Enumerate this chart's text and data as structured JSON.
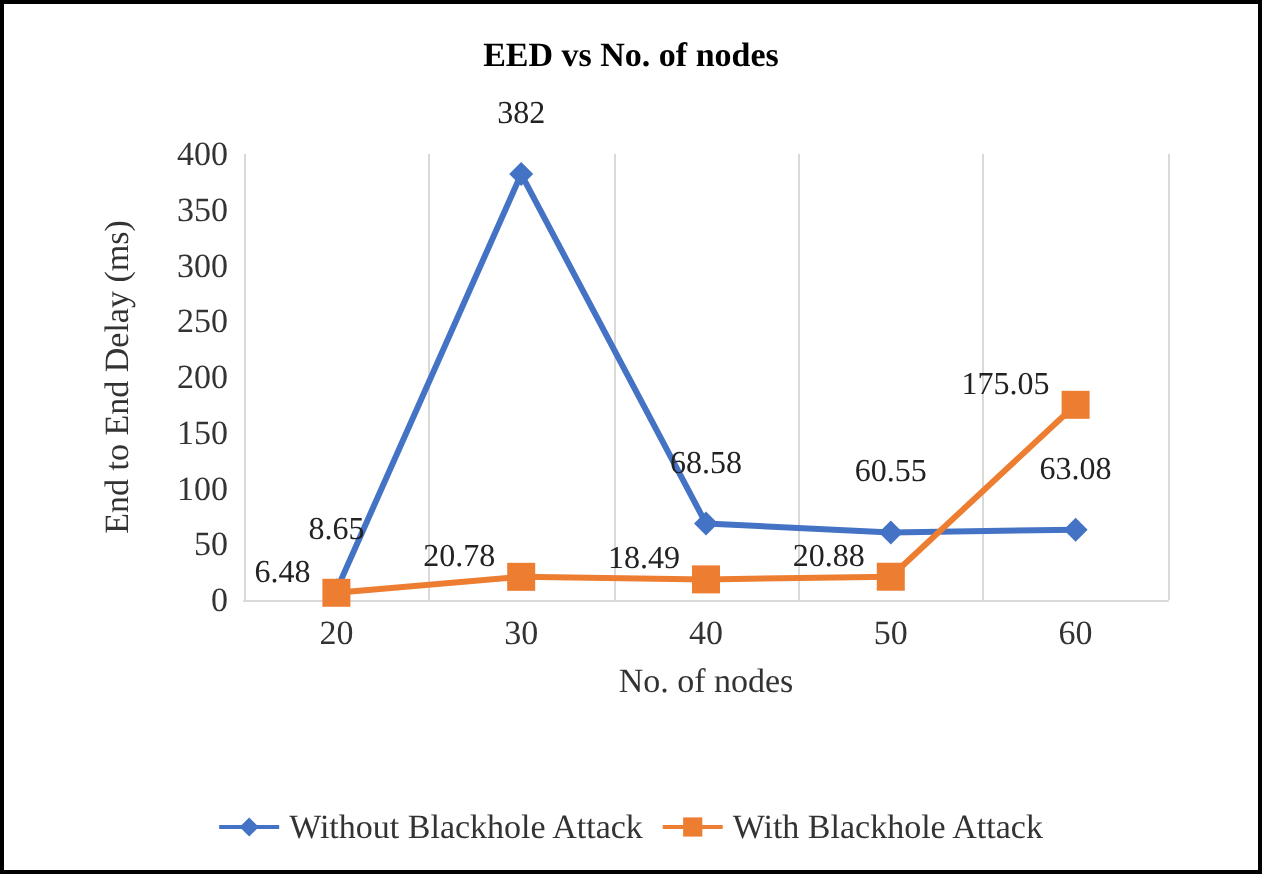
{
  "chart_data": {
    "type": "line",
    "title": "EED vs No. of nodes",
    "xlabel": "No. of nodes",
    "ylabel": "End to End Delay (ms)",
    "categories": [
      "20",
      "30",
      "40",
      "50",
      "60"
    ],
    "series": [
      {
        "name": "Without Blackhole Attack",
        "color": "#4472c4",
        "marker": "diamond",
        "values": [
          8.65,
          382,
          68.58,
          60.55,
          63.08
        ]
      },
      {
        "name": "With Blackhole Attack",
        "color": "#ed7d31",
        "marker": "square",
        "values": [
          6.48,
          20.78,
          18.49,
          20.88,
          175.05
        ]
      }
    ],
    "ylim": [
      0,
      400
    ],
    "yticks": [
      0,
      50,
      100,
      150,
      200,
      250,
      300,
      350,
      400
    ],
    "grid": "x",
    "legend": "bottom",
    "data_labels": true
  }
}
